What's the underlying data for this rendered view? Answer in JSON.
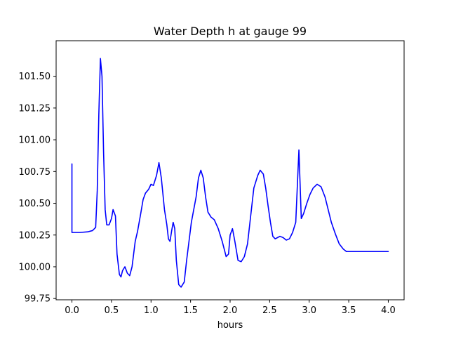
{
  "chart_data": {
    "type": "line",
    "title": "Water Depth h at gauge 99",
    "xlabel": "hours",
    "ylabel": "",
    "xlim": [
      -0.2,
      4.2
    ],
    "ylim": [
      99.74,
      101.78
    ],
    "xticks": [
      0.0,
      0.5,
      1.0,
      1.5,
      2.0,
      2.5,
      3.0,
      3.5,
      4.0
    ],
    "xtick_labels": [
      "0.0",
      "0.5",
      "1.0",
      "1.5",
      "2.0",
      "2.5",
      "3.0",
      "3.5",
      "4.0"
    ],
    "yticks": [
      99.75,
      100.0,
      100.25,
      100.5,
      100.75,
      101.0,
      101.25,
      101.5
    ],
    "ytick_labels": [
      "99.75",
      "100.00",
      "100.25",
      "100.50",
      "100.75",
      "101.00",
      "101.25",
      "101.50"
    ],
    "grid": false,
    "series": [
      {
        "color": "#0000ff",
        "x": [
          0.0,
          0.0,
          0.005,
          0.1,
          0.2,
          0.26,
          0.3,
          0.32,
          0.34,
          0.36,
          0.38,
          0.4,
          0.42,
          0.44,
          0.47,
          0.5,
          0.52,
          0.55,
          0.57,
          0.6,
          0.62,
          0.64,
          0.67,
          0.7,
          0.73,
          0.76,
          0.8,
          0.83,
          0.87,
          0.9,
          0.93,
          0.97,
          1.0,
          1.03,
          1.07,
          1.1,
          1.13,
          1.17,
          1.2,
          1.22,
          1.24,
          1.26,
          1.28,
          1.3,
          1.32,
          1.35,
          1.38,
          1.42,
          1.45,
          1.48,
          1.51,
          1.54,
          1.57,
          1.6,
          1.63,
          1.66,
          1.69,
          1.72,
          1.76,
          1.8,
          1.85,
          1.9,
          1.95,
          1.98,
          2.0,
          2.03,
          2.06,
          2.1,
          2.14,
          2.18,
          2.22,
          2.26,
          2.3,
          2.35,
          2.38,
          2.42,
          2.45,
          2.48,
          2.51,
          2.54,
          2.57,
          2.6,
          2.63,
          2.67,
          2.71,
          2.75,
          2.79,
          2.83,
          2.87,
          2.9,
          2.93,
          2.97,
          3.01,
          3.05,
          3.1,
          3.15,
          3.2,
          3.24,
          3.28,
          3.33,
          3.38,
          3.43,
          3.47,
          3.48,
          3.485,
          3.49,
          3.52,
          3.56,
          3.6,
          3.64,
          3.68,
          3.72,
          3.76,
          3.8,
          3.84,
          3.88,
          3.92,
          3.96,
          4.0
        ],
        "y": [
          100.81,
          100.27,
          100.27,
          100.27,
          100.275,
          100.285,
          100.31,
          100.6,
          101.2,
          101.64,
          101.5,
          100.9,
          100.45,
          100.33,
          100.33,
          100.38,
          100.45,
          100.4,
          100.1,
          99.94,
          99.92,
          99.97,
          100.0,
          99.95,
          99.93,
          100.0,
          100.2,
          100.28,
          100.42,
          100.53,
          100.58,
          100.61,
          100.65,
          100.64,
          100.72,
          100.82,
          100.7,
          100.45,
          100.33,
          100.22,
          100.2,
          100.28,
          100.35,
          100.3,
          100.05,
          99.86,
          99.84,
          99.88,
          100.05,
          100.2,
          100.35,
          100.45,
          100.55,
          100.7,
          100.76,
          100.7,
          100.55,
          100.43,
          100.39,
          100.37,
          100.3,
          100.2,
          100.08,
          100.1,
          100.25,
          100.3,
          100.2,
          100.05,
          100.04,
          100.08,
          100.18,
          100.4,
          100.62,
          100.72,
          100.76,
          100.73,
          100.62,
          100.48,
          100.35,
          100.24,
          100.22,
          100.23,
          100.24,
          100.23,
          100.21,
          100.22,
          100.27,
          100.35,
          100.92,
          100.38,
          100.42,
          100.5,
          100.57,
          100.62,
          100.65,
          100.63,
          100.55,
          100.45,
          100.35,
          100.26,
          100.18,
          100.14,
          100.12,
          100.12,
          100.12,
          100.12,
          100.12,
          100.12,
          100.12,
          100.12,
          100.12,
          100.12,
          100.12,
          100.12,
          100.12,
          100.12,
          100.12,
          100.12,
          100.12
        ]
      }
    ]
  }
}
